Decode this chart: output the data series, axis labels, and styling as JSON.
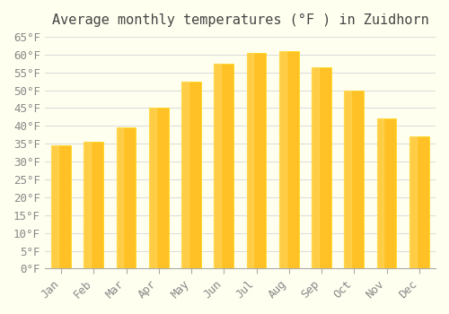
{
  "title": "Average monthly temperatures (°F ) in Zuidhorn",
  "months": [
    "Jan",
    "Feb",
    "Mar",
    "Apr",
    "May",
    "Jun",
    "Jul",
    "Aug",
    "Sep",
    "Oct",
    "Nov",
    "Dec"
  ],
  "values": [
    34.5,
    35.5,
    39.5,
    45.0,
    52.5,
    57.5,
    60.5,
    61.0,
    56.5,
    50.0,
    42.0,
    37.0
  ],
  "bar_color_face": "#FFC125",
  "bar_color_edge": "#FFD700",
  "ylim": [
    0,
    65
  ],
  "yticks": [
    0,
    5,
    10,
    15,
    20,
    25,
    30,
    35,
    40,
    45,
    50,
    55,
    60,
    65
  ],
  "ytick_labels": [
    "0°F",
    "5°F",
    "10°F",
    "15°F",
    "20°F",
    "25°F",
    "30°F",
    "35°F",
    "40°F",
    "45°F",
    "50°F",
    "55°F",
    "60°F",
    "65°F"
  ],
  "background_color": "#FFFFF0",
  "grid_color": "#DDDDDD",
  "title_fontsize": 11,
  "tick_fontsize": 9,
  "bar_width": 0.6
}
